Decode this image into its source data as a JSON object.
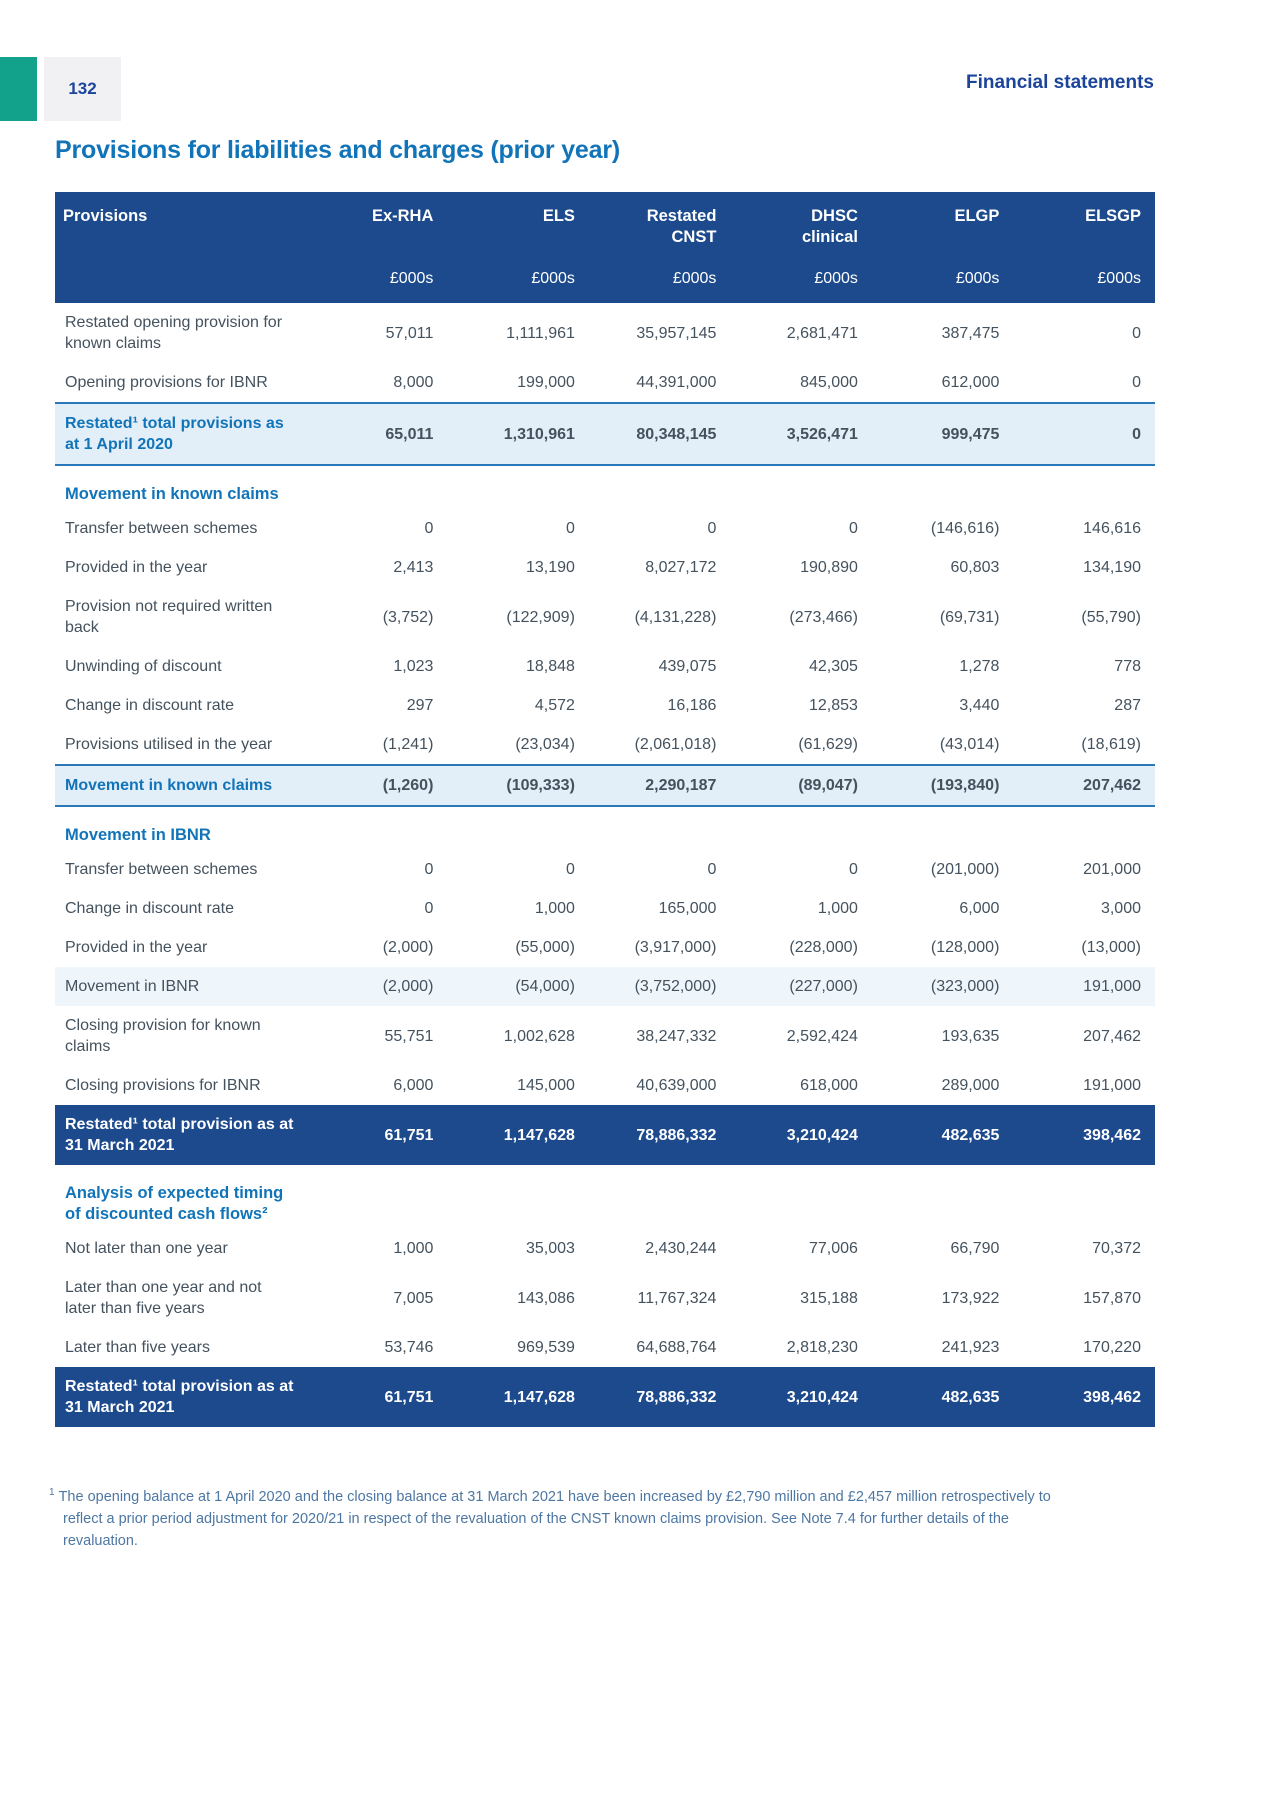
{
  "page": {
    "number": "132",
    "header_right": "Financial statements",
    "title": "Provisions for liabilities and charges (prior year)"
  },
  "table": {
    "corner_label": "Provisions",
    "columns": [
      {
        "line1": "Ex-RHA",
        "line2": "",
        "unit": "£000s"
      },
      {
        "line1": "ELS",
        "line2": "",
        "unit": "£000s"
      },
      {
        "line1": "Restated",
        "line2": "CNST",
        "unit": "£000s"
      },
      {
        "line1": "DHSC",
        "line2": "clinical",
        "unit": "£000s"
      },
      {
        "line1": "ELGP",
        "line2": "",
        "unit": "£000s"
      },
      {
        "line1": "ELSGP",
        "line2": "",
        "unit": "£000s"
      }
    ],
    "rows": [
      {
        "type": "data",
        "label": "Restated opening provision for known claims",
        "values": [
          "57,011",
          "1,111,961",
          "35,957,145",
          "2,681,471",
          "387,475",
          "0"
        ]
      },
      {
        "type": "data",
        "label": "Opening provisions for IBNR",
        "values": [
          "8,000",
          "199,000",
          "44,391,000",
          "845,000",
          "612,000",
          "0"
        ]
      },
      {
        "type": "total-light",
        "label": "Restated¹ total provisions as at 1 April 2020",
        "values": [
          "65,011",
          "1,310,961",
          "80,348,145",
          "3,526,471",
          "999,475",
          "0"
        ]
      },
      {
        "type": "section",
        "label": "Movement in known claims"
      },
      {
        "type": "data",
        "label": "Transfer between schemes",
        "values": [
          "0",
          "0",
          "0",
          "0",
          "(146,616)",
          "146,616"
        ]
      },
      {
        "type": "data",
        "label": "Provided in the year",
        "values": [
          "2,413",
          "13,190",
          "8,027,172",
          "190,890",
          "60,803",
          "134,190"
        ]
      },
      {
        "type": "data",
        "label": "Provision not required written back",
        "values": [
          "(3,752)",
          "(122,909)",
          "(4,131,228)",
          "(273,466)",
          "(69,731)",
          "(55,790)"
        ]
      },
      {
        "type": "data",
        "label": "Unwinding of discount",
        "values": [
          "1,023",
          "18,848",
          "439,075",
          "42,305",
          "1,278",
          "778"
        ]
      },
      {
        "type": "data",
        "label": "Change in discount rate",
        "values": [
          "297",
          "4,572",
          "16,186",
          "12,853",
          "3,440",
          "287"
        ]
      },
      {
        "type": "data",
        "label": "Provisions utilised in the year",
        "values": [
          "(1,241)",
          "(23,034)",
          "(2,061,018)",
          "(61,629)",
          "(43,014)",
          "(18,619)"
        ]
      },
      {
        "type": "total-light",
        "label": "Movement in known claims",
        "values": [
          "(1,260)",
          "(109,333)",
          "2,290,187",
          "(89,047)",
          "(193,840)",
          "207,462"
        ]
      },
      {
        "type": "section",
        "label": "Movement in IBNR"
      },
      {
        "type": "data",
        "label": "Transfer between schemes",
        "values": [
          "0",
          "0",
          "0",
          "0",
          "(201,000)",
          "201,000"
        ]
      },
      {
        "type": "data",
        "label": "Change in discount rate",
        "values": [
          "0",
          "1,000",
          "165,000",
          "1,000",
          "6,000",
          "3,000"
        ]
      },
      {
        "type": "data",
        "label": "Provided in the year",
        "values": [
          "(2,000)",
          "(55,000)",
          "(3,917,000)",
          "(228,000)",
          "(128,000)",
          "(13,000)"
        ]
      },
      {
        "type": "subtotal-faint",
        "label": "Movement in IBNR",
        "values": [
          "(2,000)",
          "(54,000)",
          "(3,752,000)",
          "(227,000)",
          "(323,000)",
          "191,000"
        ]
      },
      {
        "type": "data",
        "label": "Closing provision for known claims",
        "values": [
          "55,751",
          "1,002,628",
          "38,247,332",
          "2,592,424",
          "193,635",
          "207,462"
        ]
      },
      {
        "type": "data",
        "label": "Closing provisions for IBNR",
        "values": [
          "6,000",
          "145,000",
          "40,639,000",
          "618,000",
          "289,000",
          "191,000"
        ]
      },
      {
        "type": "total-dark",
        "label": "Restated¹ total provision as at 31 March 2021",
        "values": [
          "61,751",
          "1,147,628",
          "78,886,332",
          "3,210,424",
          "482,635",
          "398,462"
        ]
      },
      {
        "type": "section",
        "label": "Analysis of expected timing of discounted cash flows²"
      },
      {
        "type": "data",
        "label": "Not later than one year",
        "values": [
          "1,000",
          "35,003",
          "2,430,244",
          "77,006",
          "66,790",
          "70,372"
        ]
      },
      {
        "type": "data",
        "label": "Later than one year and not later than five years",
        "values": [
          "7,005",
          "143,086",
          "11,767,324",
          "315,188",
          "173,922",
          "157,870"
        ]
      },
      {
        "type": "data",
        "label": "Later than five years",
        "values": [
          "53,746",
          "969,539",
          "64,688,764",
          "2,818,230",
          "241,923",
          "170,220"
        ]
      },
      {
        "type": "total-dark",
        "label": "Restated¹ total provision as at 31 March 2021",
        "values": [
          "61,751",
          "1,147,628",
          "78,886,332",
          "3,210,424",
          "482,635",
          "398,462"
        ]
      }
    ],
    "colors": {
      "header_bg": "#1c4a8c",
      "total_light_bg": "#e2eef8",
      "total_light_border": "#2878ba",
      "subtotal_faint_bg": "#eef5fb",
      "section_text": "#1274b8",
      "accent_teal": "#12a28c",
      "navy_text": "#1b449b",
      "body_text": "#44525e",
      "footnote_text": "#4d77a3"
    }
  },
  "footnote": {
    "marker": "1",
    "text": "The opening balance at 1 April 2020 and the closing balance at 31 March 2021 have been increased by £2,790 million and £2,457 million retrospectively to reflect a prior period adjustment for 2020/21 in respect of the revaluation of the CNST known claims provision. See Note 7.4 for further details of the revaluation."
  }
}
